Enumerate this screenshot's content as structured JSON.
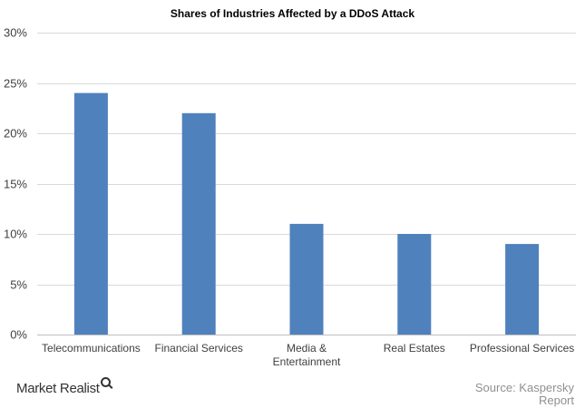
{
  "chart_data": {
    "type": "bar",
    "title": "Shares of Industries Affected by a DDoS Attack",
    "categories": [
      "Telecommunications",
      "Financial Services",
      "Media & Entertainment",
      "Real Estates",
      "Professional Services"
    ],
    "category_lines": [
      [
        "Telecommunications"
      ],
      [
        "Financial Services"
      ],
      [
        "Media &",
        "Entertainment"
      ],
      [
        "Real Estates"
      ],
      [
        "Professional Services"
      ]
    ],
    "values": [
      24,
      22,
      11,
      10,
      9
    ],
    "ylim": [
      0,
      30
    ],
    "yticks": [
      0,
      5,
      10,
      15,
      20,
      25,
      30
    ],
    "ytick_labels": [
      "0%",
      "5%",
      "10%",
      "15%",
      "20%",
      "25%",
      "30%"
    ],
    "bar_color": "#4f81bd",
    "grid": true,
    "legend": "none"
  },
  "footer": {
    "brand": "Market Realist",
    "source_line1": "Source: Kaspersky",
    "source_line2": "Report"
  }
}
